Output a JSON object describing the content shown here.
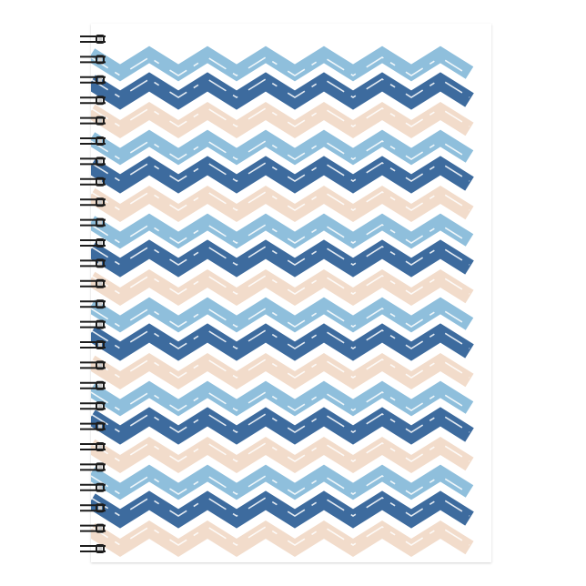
{
  "product": {
    "type": "spiral notebook",
    "pattern": "chevron",
    "colors": {
      "peach": "#f2dccb",
      "light_blue": "#8fbfdc",
      "dark_blue": "#3d6b9e",
      "cover_background": "#ffffff",
      "spiral": "#1c1c1c"
    }
  }
}
